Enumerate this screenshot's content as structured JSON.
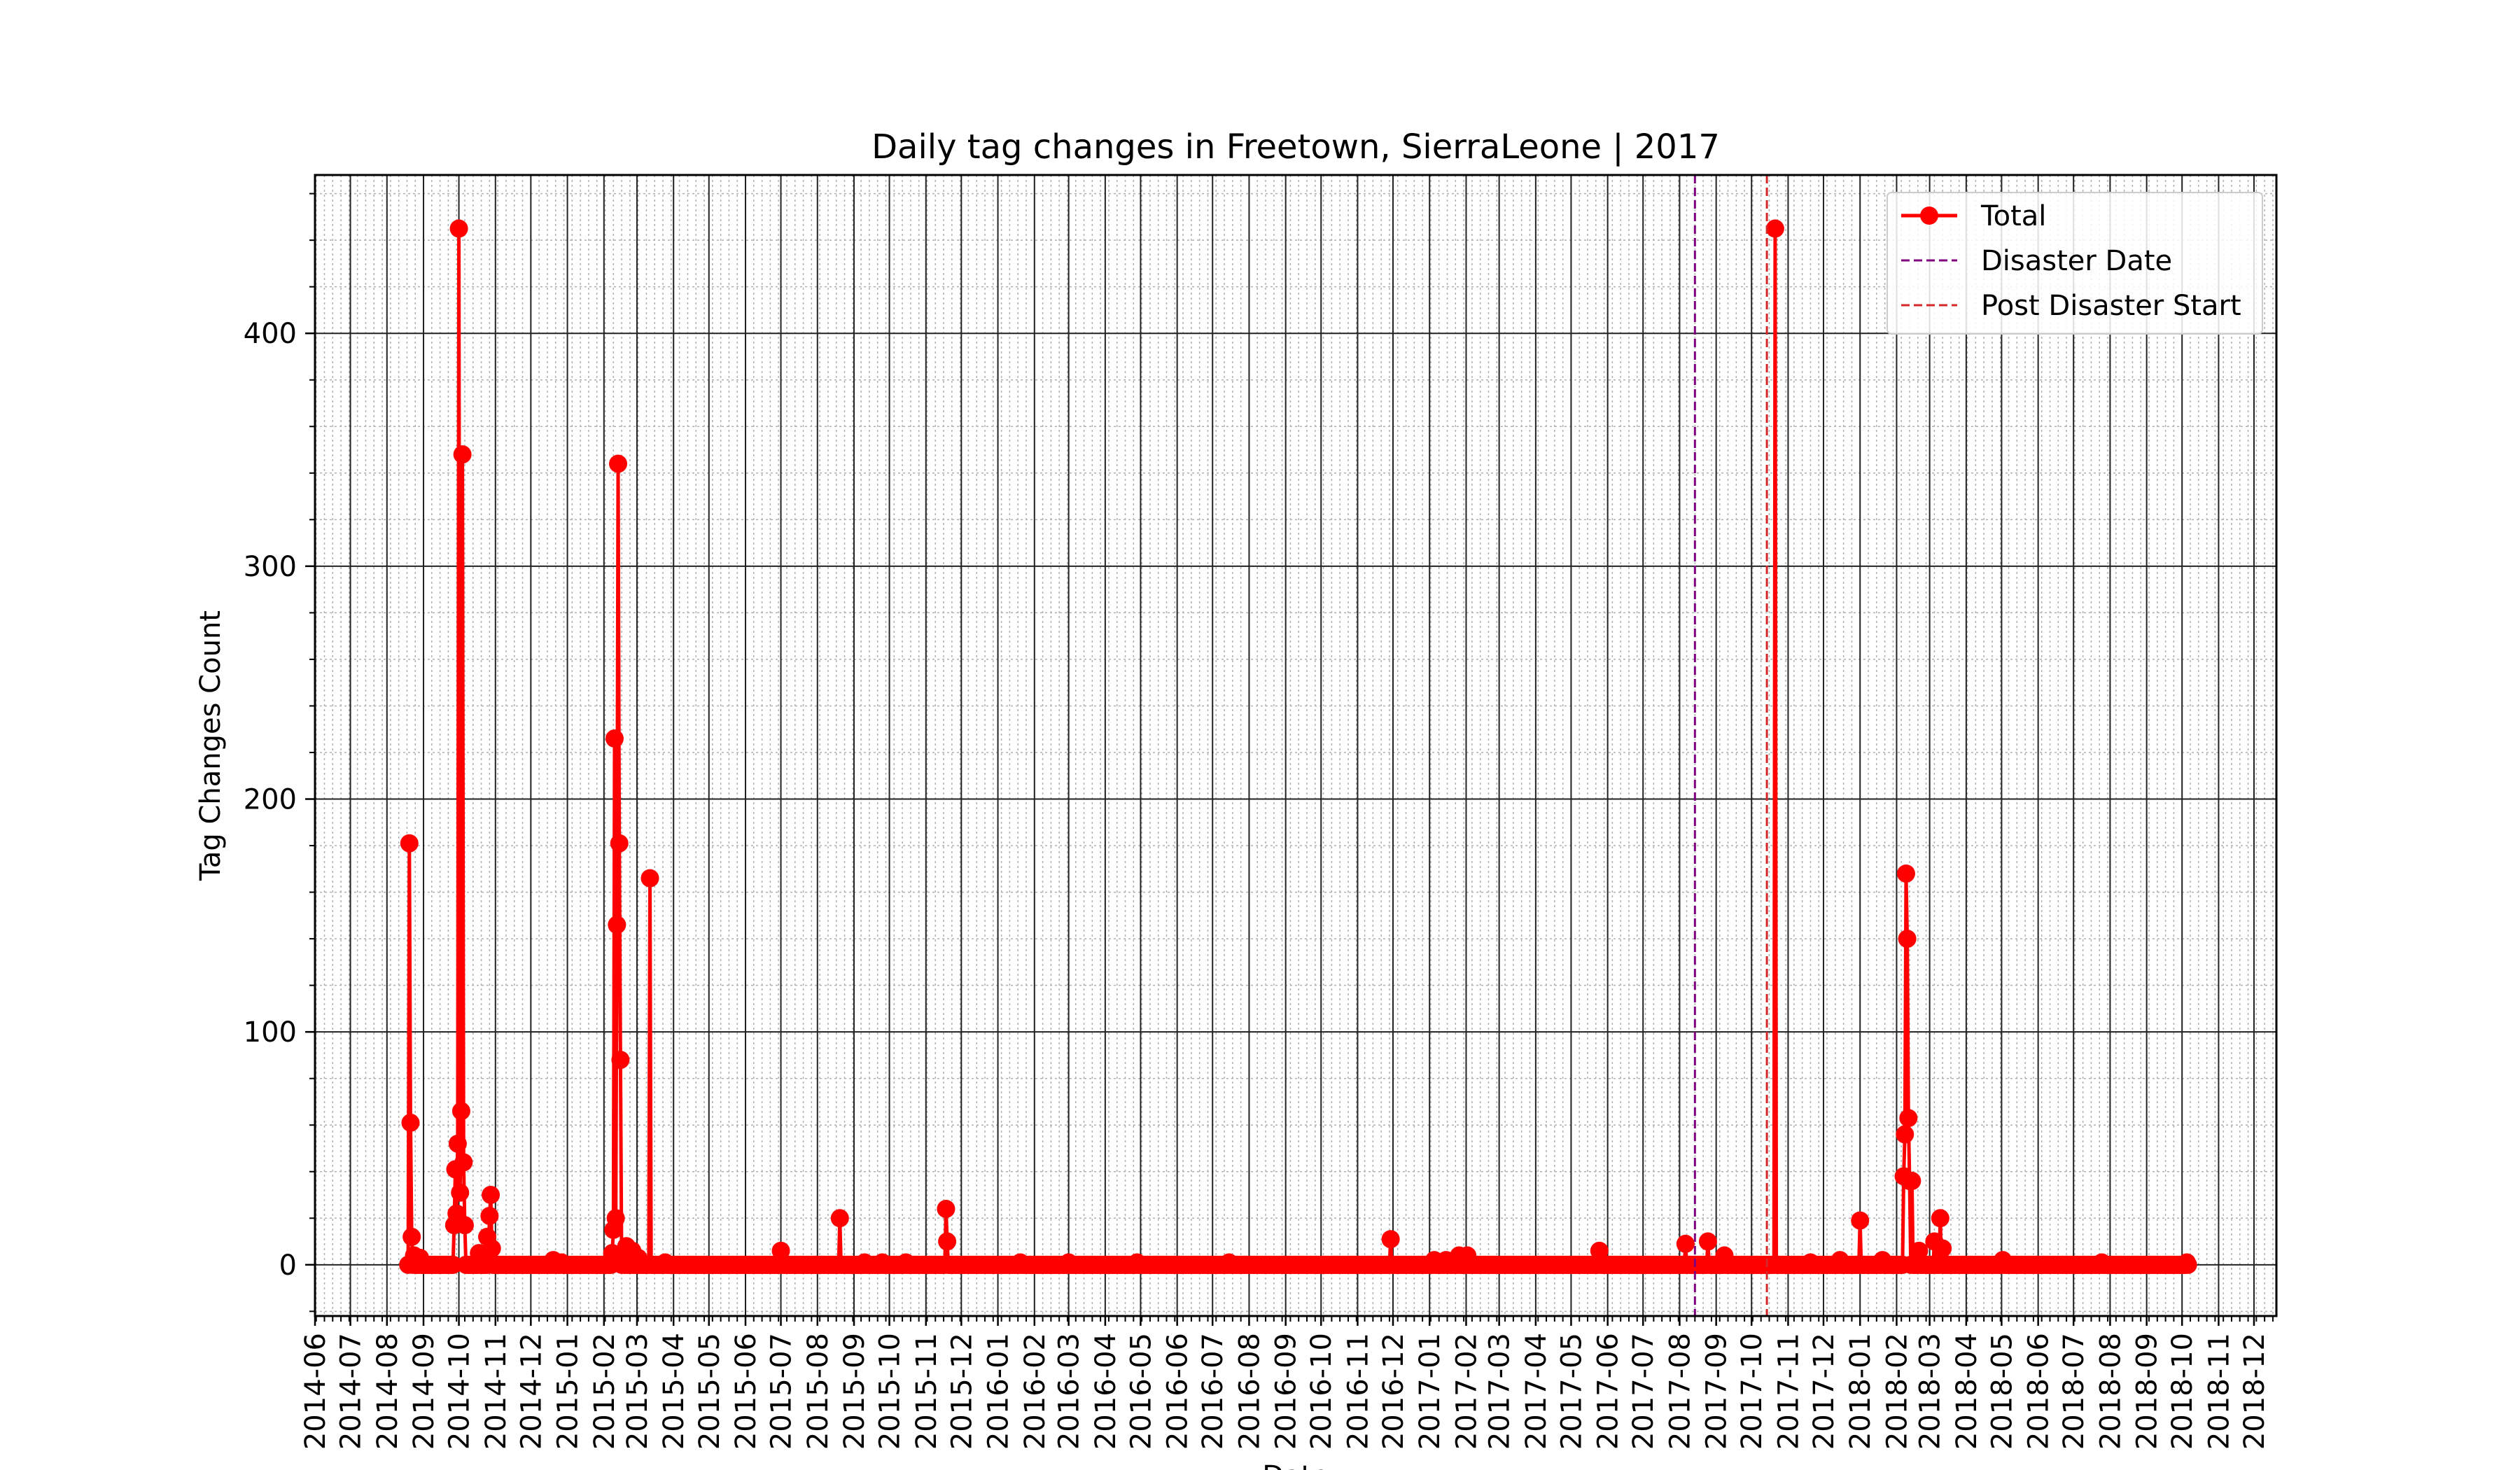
{
  "chart_data": {
    "type": "line",
    "title": "Daily tag changes in Freetown, SierraLeone | 2017",
    "xlabel": "Date",
    "ylabel": "Tag Changes Count",
    "xlim": [
      "2014-06-01",
      "2018-12-20"
    ],
    "ylim": [
      -22,
      468
    ],
    "grid": "major and minor",
    "legend_position": "top-right",
    "x_ticks": [
      "2014-06",
      "2014-07",
      "2014-08",
      "2014-09",
      "2014-10",
      "2014-11",
      "2014-12",
      "2015-01",
      "2015-02",
      "2015-03",
      "2015-04",
      "2015-05",
      "2015-06",
      "2015-07",
      "2015-08",
      "2015-09",
      "2015-10",
      "2015-11",
      "2015-12",
      "2016-01",
      "2016-02",
      "2016-03",
      "2016-04",
      "2016-05",
      "2016-06",
      "2016-07",
      "2016-08",
      "2016-09",
      "2016-10",
      "2016-11",
      "2016-12",
      "2017-01",
      "2017-02",
      "2017-03",
      "2017-04",
      "2017-05",
      "2017-06",
      "2017-07",
      "2017-08",
      "2017-09",
      "2017-10",
      "2017-11",
      "2017-12",
      "2018-01",
      "2018-02",
      "2018-03",
      "2018-04",
      "2018-05",
      "2018-06",
      "2018-07",
      "2018-08",
      "2018-09",
      "2018-10",
      "2018-11",
      "2018-12"
    ],
    "y_ticks": [
      0,
      100,
      200,
      300,
      400
    ],
    "series": [
      {
        "name": "Total",
        "color": "#ff0000",
        "baseline_range": [
          "2014-08-19",
          "2018-10-06"
        ],
        "points": [
          [
            "2014-08-20",
            181
          ],
          [
            "2014-08-21",
            61
          ],
          [
            "2014-08-22",
            12
          ],
          [
            "2014-08-24",
            4
          ],
          [
            "2014-08-29",
            3
          ],
          [
            "2014-09-27",
            17
          ],
          [
            "2014-09-28",
            41
          ],
          [
            "2014-09-29",
            22
          ],
          [
            "2014-09-30",
            52
          ],
          [
            "2014-10-01",
            445
          ],
          [
            "2014-10-02",
            31
          ],
          [
            "2014-10-03",
            66
          ],
          [
            "2014-10-04",
            348
          ],
          [
            "2014-10-05",
            44
          ],
          [
            "2014-10-06",
            17
          ],
          [
            "2014-10-18",
            5
          ],
          [
            "2014-10-25",
            12
          ],
          [
            "2014-10-27",
            21
          ],
          [
            "2014-10-28",
            30
          ],
          [
            "2014-10-29",
            7
          ],
          [
            "2014-12-20",
            2
          ],
          [
            "2014-12-27",
            1
          ],
          [
            "2015-02-08",
            5
          ],
          [
            "2015-02-09",
            15
          ],
          [
            "2015-02-10",
            226
          ],
          [
            "2015-02-11",
            20
          ],
          [
            "2015-02-12",
            146
          ],
          [
            "2015-02-13",
            344
          ],
          [
            "2015-02-14",
            181
          ],
          [
            "2015-02-15",
            88
          ],
          [
            "2015-02-17",
            3
          ],
          [
            "2015-02-20",
            8
          ],
          [
            "2015-02-25",
            6
          ],
          [
            "2015-03-02",
            3
          ],
          [
            "2015-03-12",
            166
          ],
          [
            "2015-03-25",
            1
          ],
          [
            "2015-07-01",
            6
          ],
          [
            "2015-08-20",
            20
          ],
          [
            "2015-09-10",
            1
          ],
          [
            "2015-09-25",
            1
          ],
          [
            "2015-10-15",
            1
          ],
          [
            "2015-11-18",
            24
          ],
          [
            "2015-11-19",
            10
          ],
          [
            "2016-01-20",
            1
          ],
          [
            "2016-03-01",
            1
          ],
          [
            "2016-04-28",
            1
          ],
          [
            "2016-07-15",
            1
          ],
          [
            "2016-11-29",
            11
          ],
          [
            "2017-01-05",
            2
          ],
          [
            "2017-01-15",
            2
          ],
          [
            "2017-01-26",
            4
          ],
          [
            "2017-02-02",
            4
          ],
          [
            "2017-05-25",
            6
          ],
          [
            "2017-08-06",
            9
          ],
          [
            "2017-08-25",
            10
          ],
          [
            "2017-09-08",
            4
          ],
          [
            "2017-10-21",
            445
          ],
          [
            "2017-11-20",
            1
          ],
          [
            "2017-12-15",
            2
          ],
          [
            "2018-01-01",
            19
          ],
          [
            "2018-01-20",
            2
          ],
          [
            "2018-02-07",
            38
          ],
          [
            "2018-02-08",
            56
          ],
          [
            "2018-02-09",
            168
          ],
          [
            "2018-02-10",
            140
          ],
          [
            "2018-02-11",
            63
          ],
          [
            "2018-02-12",
            36
          ],
          [
            "2018-02-14",
            36
          ],
          [
            "2018-02-20",
            6
          ],
          [
            "2018-03-05",
            10
          ],
          [
            "2018-03-10",
            20
          ],
          [
            "2018-03-12",
            7
          ],
          [
            "2018-05-02",
            2
          ],
          [
            "2018-07-25",
            1
          ],
          [
            "2018-10-05",
            1
          ]
        ]
      }
    ],
    "vlines": [
      {
        "name": "Disaster Date",
        "x": "2017-08-14",
        "color": "#800080",
        "style": "dashed"
      },
      {
        "name": "Post Disaster Start",
        "x": "2017-10-14",
        "color": "#d62728",
        "style": "dashed"
      }
    ]
  }
}
